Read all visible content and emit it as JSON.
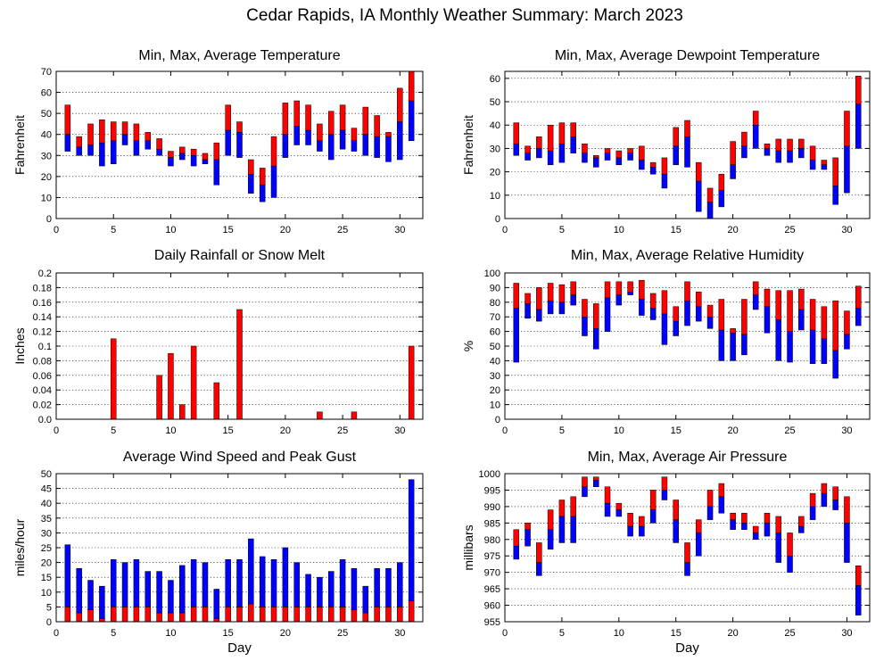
{
  "title": "Cedar Rapids, IA Monthly Weather Summary: March 2023",
  "colors": {
    "red": "#ff0000",
    "blue": "#0000ff",
    "gridline": "#000000",
    "background": "#ffffff"
  },
  "chart_data": [
    {
      "id": "temp",
      "type": "bar",
      "title": "Min, Max, Average Temperature",
      "xlabel": "",
      "ylabel": "Fahrenheit",
      "xlim": [
        0,
        32
      ],
      "ylim": [
        0,
        70
      ],
      "xticks": [
        0,
        5,
        10,
        15,
        20,
        25,
        30
      ],
      "yticks": [
        0,
        10,
        20,
        30,
        40,
        50,
        60,
        70
      ],
      "grid": true,
      "x": [
        1,
        2,
        3,
        4,
        5,
        6,
        7,
        8,
        9,
        10,
        11,
        12,
        13,
        14,
        15,
        16,
        17,
        18,
        19,
        20,
        21,
        22,
        23,
        24,
        25,
        26,
        27,
        28,
        29,
        30,
        31
      ],
      "series": [
        {
          "name": "",
          "role": "min",
          "values": [
            32,
            30,
            30,
            25,
            26,
            35,
            30,
            33,
            30,
            25,
            28,
            25,
            26,
            16,
            30,
            29,
            12,
            8,
            10,
            29,
            35,
            35,
            32,
            28,
            33,
            32,
            30,
            29,
            27,
            28,
            37
          ]
        },
        {
          "name": "",
          "role": "avg",
          "values": [
            40,
            34,
            35,
            36,
            37,
            40,
            37,
            37,
            33,
            29,
            31,
            30,
            28,
            28,
            42,
            41,
            21,
            16,
            25,
            40,
            44,
            42,
            37,
            40,
            42,
            37,
            40,
            39,
            39,
            46,
            56
          ]
        },
        {
          "name": "",
          "role": "max",
          "values": [
            54,
            39,
            45,
            47,
            46,
            46,
            45,
            41,
            38,
            32,
            34,
            33,
            31,
            36,
            54,
            46,
            28,
            24,
            39,
            55,
            56,
            54,
            45,
            51,
            54,
            43,
            53,
            49,
            41,
            62,
            70
          ]
        }
      ],
      "stack_order": [
        [
          "blue",
          "min",
          "avg"
        ],
        [
          "red",
          "avg",
          "max"
        ]
      ]
    },
    {
      "id": "dewpoint",
      "type": "bar",
      "title": "Min, Max, Average Dewpoint Temperature",
      "xlabel": "",
      "ylabel": "Fahrenheit",
      "xlim": [
        0,
        32
      ],
      "ylim": [
        0,
        63
      ],
      "xticks": [
        0,
        5,
        10,
        15,
        20,
        25,
        30
      ],
      "yticks": [
        0,
        10,
        20,
        30,
        40,
        50,
        60
      ],
      "grid": true,
      "x": [
        1,
        2,
        3,
        4,
        5,
        6,
        7,
        8,
        9,
        10,
        11,
        12,
        13,
        14,
        15,
        16,
        17,
        18,
        19,
        20,
        21,
        22,
        23,
        24,
        25,
        26,
        27,
        28,
        29,
        30,
        31
      ],
      "series": [
        {
          "name": "",
          "role": "min",
          "values": [
            27,
            25,
            26,
            23,
            24,
            28,
            24,
            22,
            25,
            23,
            25,
            21,
            19,
            13,
            23,
            22,
            3,
            0,
            5,
            17,
            26,
            30,
            27,
            24,
            24,
            26,
            21,
            21,
            6,
            11,
            30
          ]
        },
        {
          "name": "",
          "role": "avg",
          "values": [
            32,
            28,
            30,
            29,
            32,
            35,
            28,
            26,
            28,
            26,
            28,
            25,
            22,
            19,
            31,
            35,
            16,
            7,
            12,
            23,
            31,
            40,
            30,
            29,
            29,
            30,
            25,
            23,
            14,
            31,
            49
          ]
        },
        {
          "name": "",
          "role": "max",
          "values": [
            41,
            31,
            35,
            40,
            41,
            41,
            32,
            27,
            30,
            29,
            30,
            31,
            24,
            26,
            39,
            42,
            24,
            13,
            19,
            33,
            37,
            46,
            32,
            34,
            34,
            34,
            31,
            25,
            26,
            46,
            61
          ]
        }
      ],
      "stack_order": [
        [
          "blue",
          "min",
          "avg"
        ],
        [
          "red",
          "avg",
          "max"
        ]
      ]
    },
    {
      "id": "rain",
      "type": "bar",
      "title": "Daily Rainfall or Snow Melt",
      "xlabel": "",
      "ylabel": "Inches",
      "xlim": [
        0,
        32
      ],
      "ylim": [
        0,
        0.2
      ],
      "xticks": [
        0,
        5,
        10,
        15,
        20,
        25,
        30
      ],
      "yticks": [
        "0.0",
        "0.02",
        "0.04",
        "0.06",
        "0.08",
        "0.1",
        "0.12",
        "0.14",
        "0.16",
        "0.18",
        "0.2"
      ],
      "grid": true,
      "x": [
        1,
        2,
        3,
        4,
        5,
        6,
        7,
        8,
        9,
        10,
        11,
        12,
        13,
        14,
        15,
        16,
        17,
        18,
        19,
        20,
        21,
        22,
        23,
        24,
        25,
        26,
        27,
        28,
        29,
        30,
        31
      ],
      "series": [
        {
          "name": "",
          "role": "precip",
          "values": [
            0,
            0,
            0,
            0,
            0.11,
            0,
            0,
            0,
            0.06,
            0.09,
            0.02,
            0.1,
            0,
            0.05,
            0,
            0.15,
            0,
            0,
            0,
            0,
            0,
            0,
            0.01,
            0,
            0,
            0.01,
            0,
            0,
            0,
            0,
            0.1
          ]
        }
      ]
    },
    {
      "id": "rh",
      "type": "bar",
      "title": "Min, Max, Average Relative Humidity",
      "xlabel": "",
      "ylabel": "%",
      "xlim": [
        0,
        32
      ],
      "ylim": [
        0,
        100
      ],
      "xticks": [
        0,
        5,
        10,
        15,
        20,
        25,
        30
      ],
      "yticks": [
        0,
        10,
        20,
        30,
        40,
        50,
        60,
        70,
        80,
        90,
        100
      ],
      "grid": true,
      "x": [
        1,
        2,
        3,
        4,
        5,
        6,
        7,
        8,
        9,
        10,
        11,
        12,
        13,
        14,
        15,
        16,
        17,
        18,
        19,
        20,
        21,
        22,
        23,
        24,
        25,
        26,
        27,
        28,
        29,
        30,
        31
      ],
      "series": [
        {
          "name": "",
          "role": "min",
          "values": [
            39,
            69,
            67,
            72,
            72,
            78,
            57,
            48,
            60,
            78,
            85,
            71,
            68,
            51,
            57,
            64,
            67,
            62,
            40,
            40,
            44,
            75,
            59,
            40,
            39,
            61,
            38,
            38,
            28,
            48,
            64
          ]
        },
        {
          "name": "",
          "role": "avg",
          "values": [
            76,
            79,
            75,
            81,
            80,
            85,
            70,
            62,
            83,
            85,
            87,
            82,
            76,
            72,
            67,
            81,
            77,
            70,
            61,
            59,
            58,
            85,
            77,
            68,
            60,
            75,
            61,
            55,
            47,
            58,
            76
          ]
        },
        {
          "name": "",
          "role": "max",
          "values": [
            93,
            86,
            90,
            93,
            92,
            94,
            82,
            79,
            94,
            94,
            94,
            95,
            86,
            88,
            77,
            94,
            87,
            78,
            82,
            62,
            82,
            94,
            89,
            88,
            88,
            89,
            82,
            77,
            81,
            74,
            91
          ]
        }
      ],
      "stack_order": [
        [
          "blue",
          "min",
          "avg"
        ],
        [
          "red",
          "avg",
          "max"
        ]
      ]
    },
    {
      "id": "wind",
      "type": "bar",
      "title": "Average Wind Speed and Peak Gust",
      "xlabel": "Day",
      "ylabel": "miles/hour",
      "xlim": [
        0,
        32
      ],
      "ylim": [
        0,
        50
      ],
      "xticks": [
        0,
        5,
        10,
        15,
        20,
        25,
        30
      ],
      "yticks": [
        0,
        5,
        10,
        15,
        20,
        25,
        30,
        35,
        40,
        45,
        50
      ],
      "grid": true,
      "x": [
        1,
        2,
        3,
        4,
        5,
        6,
        7,
        8,
        9,
        10,
        11,
        12,
        13,
        14,
        15,
        16,
        17,
        18,
        19,
        20,
        21,
        22,
        23,
        24,
        25,
        26,
        27,
        28,
        29,
        30,
        31
      ],
      "series": [
        {
          "name": "",
          "role": "avg",
          "values": [
            5,
            3,
            4,
            1,
            5,
            5,
            5,
            5,
            3,
            3,
            3,
            5,
            5,
            1,
            5,
            5,
            6,
            5,
            5,
            5,
            5,
            5,
            5,
            5,
            5,
            4,
            3,
            5,
            5,
            5,
            7
          ]
        },
        {
          "name": "",
          "role": "gust",
          "values": [
            26,
            18,
            14,
            12,
            21,
            20,
            21,
            17,
            17,
            14,
            19,
            21,
            20,
            11,
            21,
            21,
            28,
            22,
            21,
            25,
            20,
            16,
            15,
            17,
            21,
            18,
            12,
            18,
            18,
            20,
            48
          ]
        }
      ],
      "stack_order": [
        [
          "red",
          "zero",
          "avg"
        ],
        [
          "blue",
          "avg",
          "gust"
        ]
      ]
    },
    {
      "id": "pressure",
      "type": "bar",
      "title": "Min, Max, Average Air Pressure",
      "xlabel": "Day",
      "ylabel": "millibars",
      "xlim": [
        0,
        32
      ],
      "ylim": [
        955,
        1000
      ],
      "xticks": [
        0,
        5,
        10,
        15,
        20,
        25,
        30
      ],
      "yticks": [
        955,
        960,
        965,
        970,
        975,
        980,
        985,
        990,
        995,
        1000
      ],
      "grid": true,
      "x": [
        1,
        2,
        3,
        4,
        5,
        6,
        7,
        8,
        9,
        10,
        11,
        12,
        13,
        14,
        15,
        16,
        17,
        18,
        19,
        20,
        21,
        22,
        23,
        24,
        25,
        26,
        27,
        28,
        29,
        30,
        31
      ],
      "series": [
        {
          "name": "",
          "role": "min",
          "values": [
            974,
            978,
            969,
            977,
            979,
            979,
            993,
            996,
            987,
            987,
            981,
            981,
            985,
            992,
            979,
            969,
            975,
            986,
            988,
            983,
            983,
            980,
            981,
            973,
            970,
            982,
            986,
            990,
            989,
            973,
            957
          ]
        },
        {
          "name": "",
          "role": "avg",
          "values": [
            978,
            983,
            973,
            983,
            987,
            987,
            996,
            998,
            991,
            989,
            984,
            984,
            989,
            995,
            986,
            973,
            982,
            990,
            993,
            986,
            985,
            982,
            985,
            982,
            975,
            984,
            990,
            994,
            992,
            985,
            966
          ]
        },
        {
          "name": "",
          "role": "max",
          "values": [
            983,
            985,
            979,
            989,
            992,
            993,
            999,
            999,
            996,
            991,
            988,
            987,
            995,
            999,
            992,
            979,
            986,
            995,
            997,
            988,
            988,
            984,
            988,
            987,
            982,
            987,
            994,
            997,
            996,
            993,
            972
          ]
        }
      ],
      "stack_order": [
        [
          "blue",
          "min",
          "avg"
        ],
        [
          "red",
          "avg",
          "max"
        ]
      ]
    }
  ]
}
